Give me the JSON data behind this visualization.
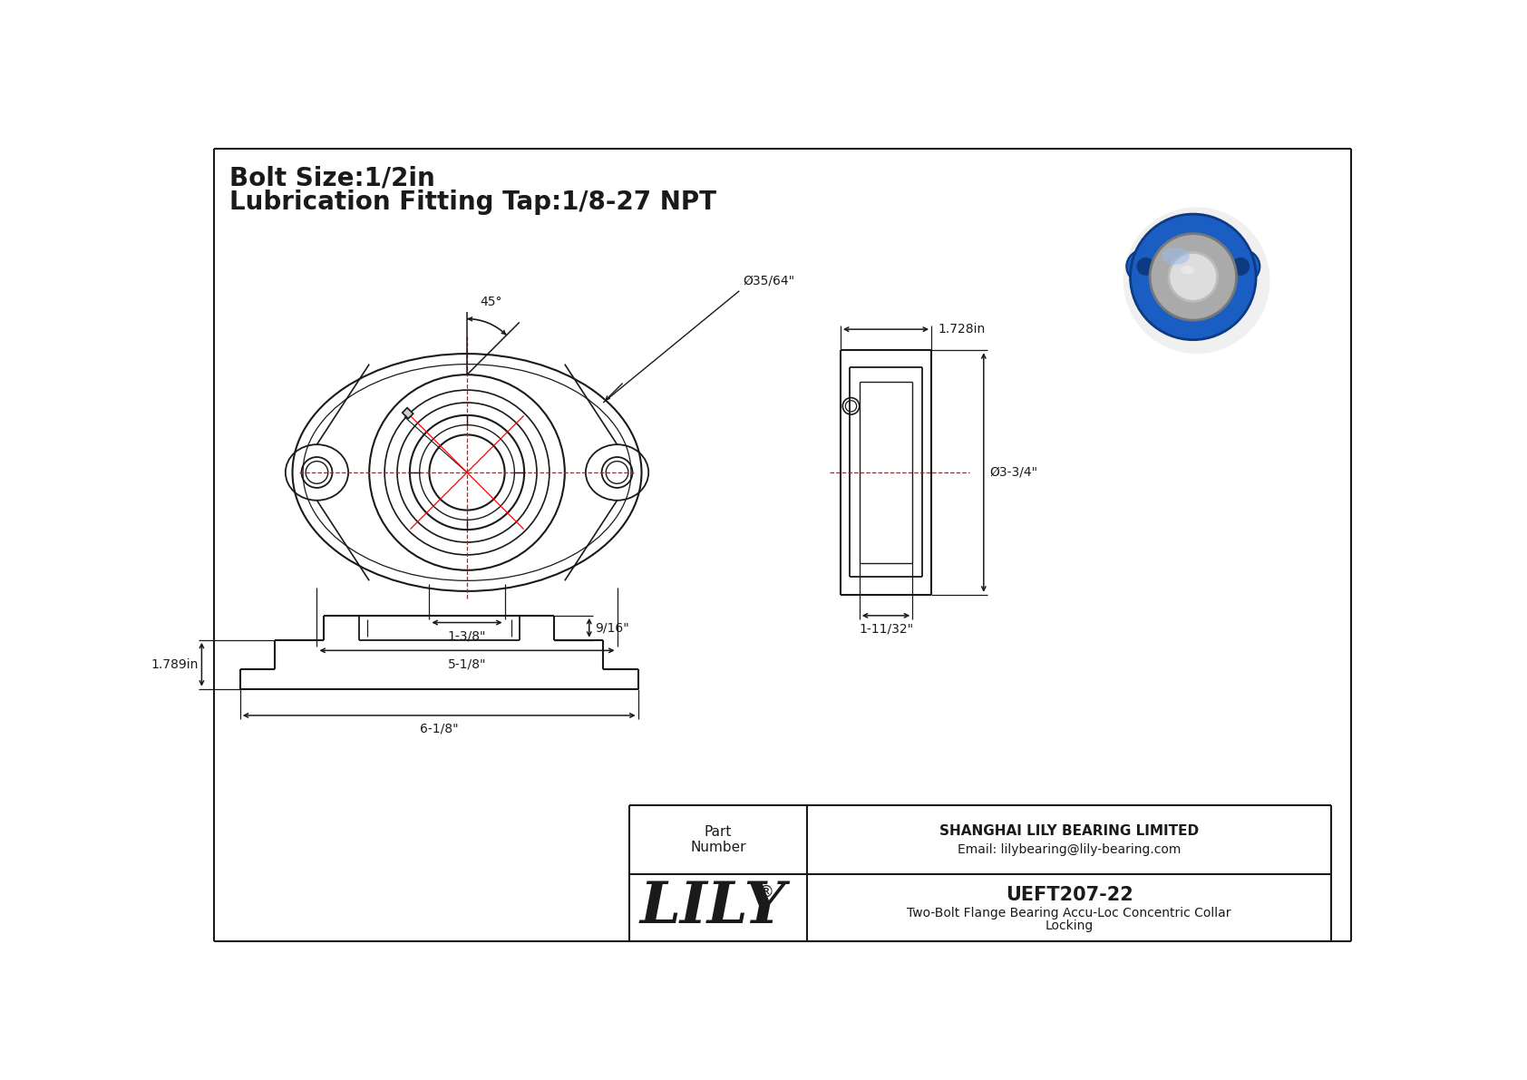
{
  "bg_color": "#ffffff",
  "line_color": "#1a1a1a",
  "red_color": "#ff0000",
  "dim_color": "#1a1a1a",
  "title_line1": "Bolt Size:1/2in",
  "title_line2": "Lubrication Fitting Tap:1/8-27 NPT",
  "label_45": "45°",
  "label_bolt_dia": "Ø35/64\"",
  "label_138": "1-3/8\"",
  "label_518": "5-1/8\"",
  "label_1728": "1.728in",
  "label_334": "Ø3-3/4\"",
  "label_11132": "1-11/32\"",
  "label_178": "1.789in",
  "label_916": "9/16\"",
  "label_618": "6-1/8\"",
  "part_number": "UEFT207-22",
  "part_desc1": "Two-Bolt Flange Bearing Accu-Loc Concentric Collar",
  "part_desc2": "Locking",
  "company": "SHANGHAI LILY BEARING LIMITED",
  "company_email": "Email: lilybearing@lily-bearing.com",
  "part_label": "Part\nNumber",
  "lily_text": "LILY",
  "lily_reg": "®",
  "photo_colors": {
    "body": "#1a5ec4",
    "body_dark": "#0d3a80",
    "body_mid": "#2266dd",
    "body_light": "#4488ee",
    "metal": "#aaaaaa",
    "metal_dark": "#777777",
    "bore": "#dddddd",
    "bore_dark": "#bbbbbb",
    "highlight": "#99bbee"
  }
}
